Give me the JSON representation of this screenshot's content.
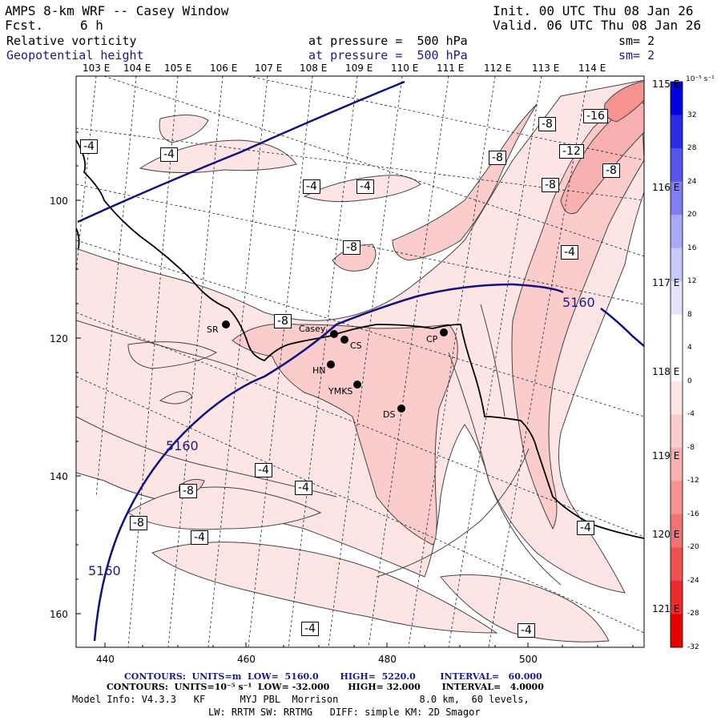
{
  "header": {
    "title": "AMPS 8-km WRF -- Casey Window",
    "fcst_label": "Fcst.",
    "fcst_value": "6 h",
    "init": "Init. 00 UTC Thu 08 Jan 26",
    "valid": "Valid. 06 UTC Thu 08 Jan 26",
    "field1": "Relative vorticity",
    "field2": "Geopotential height",
    "pressure1": "at pressure =  500 hPa",
    "pressure2": "at pressure =  500 hPa",
    "sm1": "sm= 2",
    "sm2": "sm= 2"
  },
  "top_lon_labels": [
    "103 E",
    "104 E",
    "105 E",
    "106 E",
    "107 E",
    "108 E",
    "109 E",
    "110 E",
    "111 E",
    "112 E",
    "113 E",
    "114 E"
  ],
  "right_lon_labels": [
    "115 E",
    "116 E",
    "117 E",
    "118 E",
    "119 E",
    "120 E",
    "121 E"
  ],
  "y_ticks": [
    "100",
    "120",
    "140",
    "160"
  ],
  "x_ticks": [
    "440",
    "460",
    "480",
    "500"
  ],
  "colorbar": {
    "unit": "10⁻⁵ s⁻¹",
    "labels": [
      "32",
      "28",
      "24",
      "20",
      "16",
      "12",
      "8",
      "4",
      "0",
      "-4",
      "-8",
      "-12",
      "-16",
      "-20",
      "-24",
      "-28",
      "-32"
    ],
    "colors": [
      "#0000e0",
      "#2b2be6",
      "#5555ec",
      "#7f7ff1",
      "#a9a9f6",
      "#c9c9f9",
      "#e3e3fc",
      "#ffffff",
      "#ffffff",
      "#fde5e5",
      "#fbcccc",
      "#f8b0b0",
      "#f59393",
      "#f27373",
      "#ee5050",
      "#ea2c2c",
      "#e60000"
    ]
  },
  "stations": [
    {
      "name": "SR"
    },
    {
      "name": "Casey"
    },
    {
      "name": "CS"
    },
    {
      "name": "HN"
    },
    {
      "name": "YMKS"
    },
    {
      "name": "CP"
    },
    {
      "name": "DS"
    }
  ],
  "contour_labels": {
    "vort": [
      "-4",
      "-4",
      "-4",
      "-4",
      "-8",
      "-8",
      "-8",
      "-8",
      "-12",
      "-16",
      "-8",
      "-8",
      "-4",
      "-8",
      "-4",
      "-4",
      "-8",
      "-4",
      "-4",
      "-4",
      "-4"
    ],
    "height": [
      "5160",
      "5160",
      "5160"
    ]
  },
  "footer": {
    "line1": "CONTOURS:  UNITS=m  LOW=  5160.0       HIGH=  5220.0        INTERVAL=   60.000",
    "line2": "CONTOURS:  UNITS=10⁻⁵ s⁻¹  LOW= -32.000      HIGH= 32.000       INTERVAL=   4.0000",
    "line3": "Model Info: V4.3.3   KF      MYJ PBL  Morrison              8.0 km,  60 levels,",
    "line4": "LW: RRTM SW: RRTMG   DIFF: simple KM: 2D Smagor"
  }
}
